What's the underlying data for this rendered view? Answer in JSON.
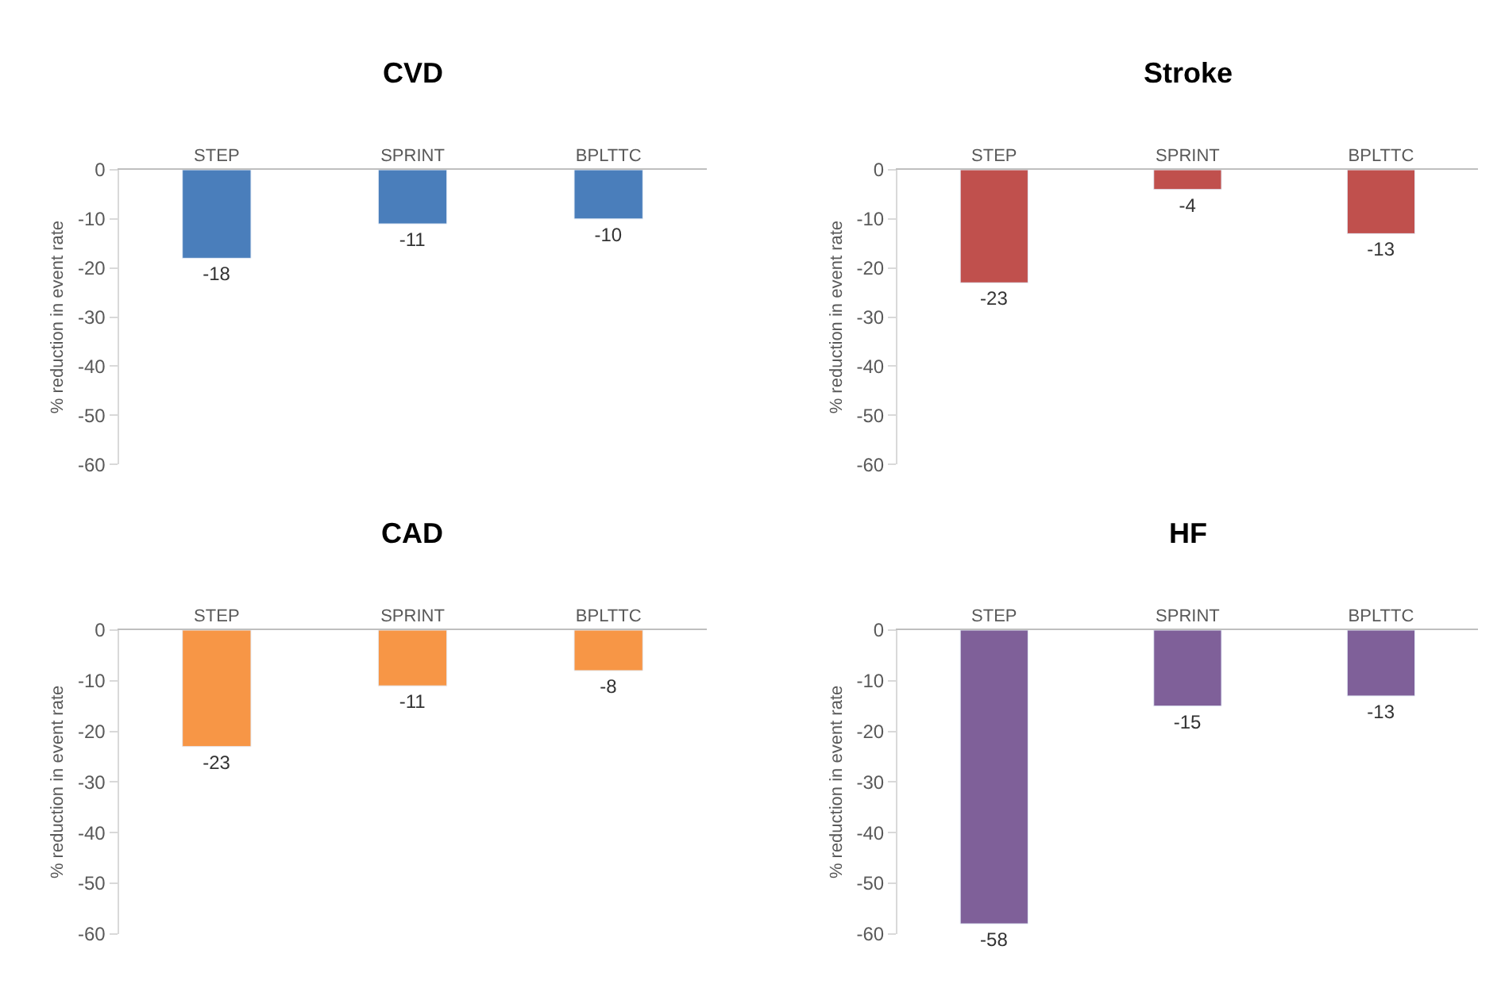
{
  "chart_data": [
    {
      "type": "bar",
      "title": "CVD",
      "ylabel": "% reduction in event rate",
      "categories": [
        "STEP",
        "SPRINT",
        "BPLTTC"
      ],
      "values": [
        -18,
        -11,
        -10
      ],
      "color": "#4a7ebb",
      "ylim": [
        -60,
        0
      ],
      "yticks": [
        0,
        -10,
        -20,
        -30,
        -40,
        -50,
        -60
      ],
      "data_labels": true
    },
    {
      "type": "bar",
      "title": "Stroke",
      "ylabel": "% reduction in event rate",
      "categories": [
        "STEP",
        "SPRINT",
        "BPLTTC"
      ],
      "values": [
        -23,
        -4,
        -13
      ],
      "color": "#c0504d",
      "ylim": [
        -60,
        0
      ],
      "yticks": [
        0,
        -10,
        -20,
        -30,
        -40,
        -50,
        -60
      ],
      "data_labels": true
    },
    {
      "type": "bar",
      "title": "CAD",
      "ylabel": "% reduction in event rate",
      "categories": [
        "STEP",
        "SPRINT",
        "BPLTTC"
      ],
      "values": [
        -23,
        -11,
        -8
      ],
      "color": "#f79646",
      "ylim": [
        -60,
        0
      ],
      "yticks": [
        0,
        -10,
        -20,
        -30,
        -40,
        -50,
        -60
      ],
      "data_labels": true
    },
    {
      "type": "bar",
      "title": "HF",
      "ylabel": "% reduction in event rate",
      "categories": [
        "STEP",
        "SPRINT",
        "BPLTTC"
      ],
      "values": [
        -58,
        -15,
        -13
      ],
      "color": "#7f6099",
      "ylim": [
        -60,
        0
      ],
      "yticks": [
        0,
        -10,
        -20,
        -30,
        -40,
        -50,
        -60
      ],
      "data_labels": true
    }
  ]
}
